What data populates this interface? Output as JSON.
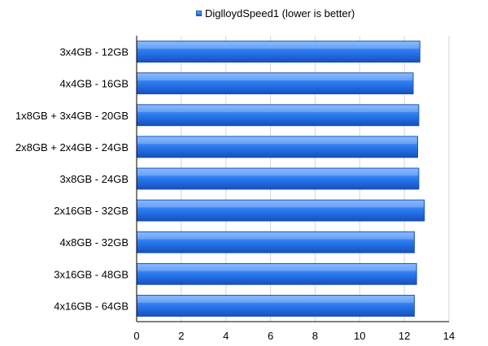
{
  "chart_data": {
    "type": "bar",
    "orientation": "horizontal",
    "categories": [
      "3x4GB - 12GB",
      "4x4GB - 16GB",
      "1x8GB + 3x4GB - 20GB",
      "2x8GB + 2x4GB - 24GB",
      "3x8GB - 24GB",
      "2x16GB - 32GB",
      "4x8GB - 32GB",
      "3x16GB - 48GB",
      "4x16GB - 64GB"
    ],
    "series": [
      {
        "name": "DiglloydSpeed1 (lower is better)",
        "values": [
          12.7,
          12.4,
          12.65,
          12.6,
          12.65,
          12.9,
          12.45,
          12.55,
          12.45
        ]
      }
    ],
    "xlim": [
      0,
      14
    ],
    "xticks": [
      "0",
      "2",
      "4",
      "6",
      "8",
      "10",
      "12",
      "14"
    ],
    "grid": "vertical",
    "legend_position": "top",
    "title": "",
    "xlabel": "",
    "ylabel": "",
    "colors": {
      "bar_top": "#6aaaff",
      "bar_mid": "#2a78ee",
      "bar_bottom": "#1550c0",
      "bar_edge": "#1448a8"
    }
  },
  "legend": {
    "label": "DiglloydSpeed1 (lower is better)"
  }
}
